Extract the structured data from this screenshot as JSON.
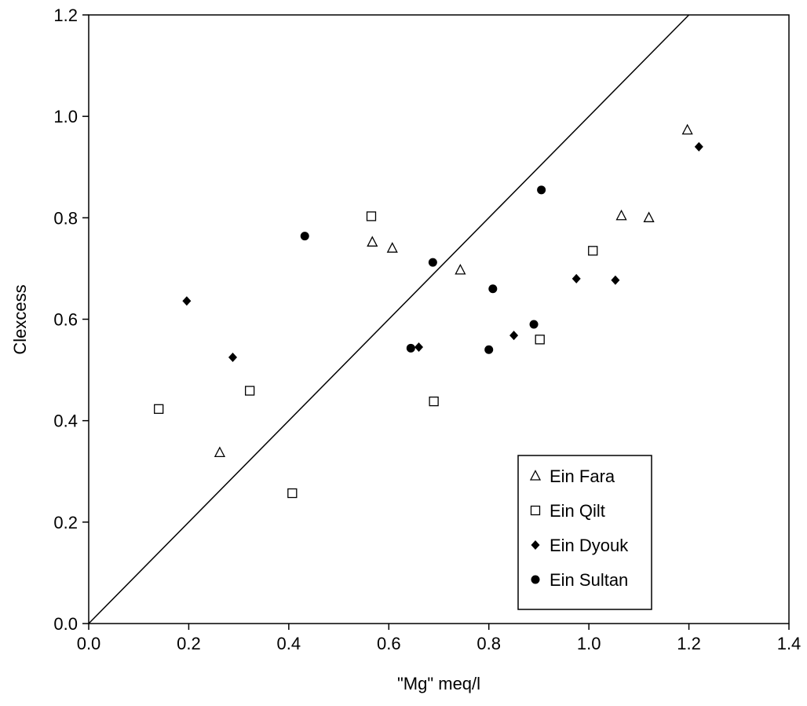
{
  "chart_data": {
    "type": "scatter",
    "title": "",
    "xlabel": "\"Mg\" meq/l",
    "ylabel": "Clexcess",
    "xlim": [
      0.0,
      1.4
    ],
    "ylim": [
      0.0,
      1.2
    ],
    "xticks": [
      "0.0",
      "0.2",
      "0.4",
      "0.6",
      "0.8",
      "1.0",
      "1.2",
      "1.4"
    ],
    "yticks": [
      "0.0",
      "0.2",
      "0.4",
      "0.6",
      "0.8",
      "1.0",
      "1.2"
    ],
    "grid": false,
    "legend_position": "bottom-right",
    "reference_line": {
      "type": "1:1 line",
      "from": [
        0.0,
        0.0
      ],
      "to": [
        1.4,
        1.4
      ]
    },
    "series": [
      {
        "name": "Ein Fara",
        "marker": "open-triangle",
        "points": [
          [
            0.262,
            0.337
          ],
          [
            0.567,
            0.752
          ],
          [
            0.607,
            0.74
          ],
          [
            0.743,
            0.697
          ],
          [
            1.065,
            0.804
          ],
          [
            1.12,
            0.8
          ],
          [
            1.197,
            0.973
          ]
        ]
      },
      {
        "name": "Ein Qilt",
        "marker": "open-square",
        "points": [
          [
            0.14,
            0.423
          ],
          [
            0.322,
            0.459
          ],
          [
            0.407,
            0.257
          ],
          [
            0.565,
            0.803
          ],
          [
            0.69,
            0.438
          ],
          [
            0.902,
            0.56
          ],
          [
            1.008,
            0.735
          ]
        ]
      },
      {
        "name": "Ein Dyouk",
        "marker": "filled-diamond",
        "points": [
          [
            0.196,
            0.636
          ],
          [
            0.288,
            0.525
          ],
          [
            0.66,
            0.545
          ],
          [
            0.85,
            0.568
          ],
          [
            0.975,
            0.68
          ],
          [
            1.053,
            0.677
          ],
          [
            1.22,
            0.94
          ]
        ]
      },
      {
        "name": "Ein Sultan",
        "marker": "filled-circle",
        "points": [
          [
            0.432,
            0.764
          ],
          [
            0.644,
            0.543
          ],
          [
            0.688,
            0.712
          ],
          [
            0.8,
            0.54
          ],
          [
            0.808,
            0.66
          ],
          [
            0.89,
            0.59
          ],
          [
            0.905,
            0.855
          ]
        ]
      }
    ]
  }
}
